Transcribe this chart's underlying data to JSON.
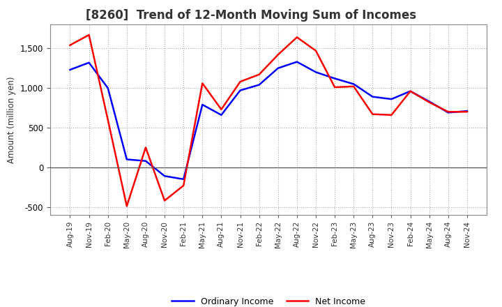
{
  "title": "[8260]  Trend of 12-Month Moving Sum of Incomes",
  "ylabel": "Amount (million yen)",
  "x_labels": [
    "Aug-19",
    "Nov-19",
    "Feb-20",
    "May-20",
    "Aug-20",
    "Nov-20",
    "Feb-21",
    "May-21",
    "Aug-21",
    "Nov-21",
    "Feb-22",
    "May-22",
    "Aug-22",
    "Nov-22",
    "Feb-23",
    "May-23",
    "Aug-23",
    "Nov-23",
    "Feb-24",
    "May-24",
    "Aug-24",
    "Nov-24"
  ],
  "ordinary_income": [
    1230,
    1320,
    1000,
    100,
    80,
    -110,
    -150,
    790,
    660,
    970,
    1040,
    1250,
    1330,
    1200,
    1120,
    1050,
    890,
    860,
    960,
    830,
    690,
    710
  ],
  "net_income": [
    1540,
    1670,
    600,
    -490,
    250,
    -420,
    -230,
    1060,
    730,
    1080,
    1170,
    1420,
    1640,
    1470,
    1010,
    1020,
    670,
    660,
    960,
    820,
    700,
    700
  ],
  "ordinary_color": "#0000ff",
  "net_color": "#ff0000",
  "background_color": "#ffffff",
  "grid_color": "#aaaaaa",
  "ylim": [
    -600,
    1800
  ],
  "yticks": [
    -500,
    0,
    500,
    1000,
    1500
  ],
  "line_width": 1.8,
  "title_fontsize": 12,
  "legend_labels": [
    "Ordinary Income",
    "Net Income"
  ]
}
